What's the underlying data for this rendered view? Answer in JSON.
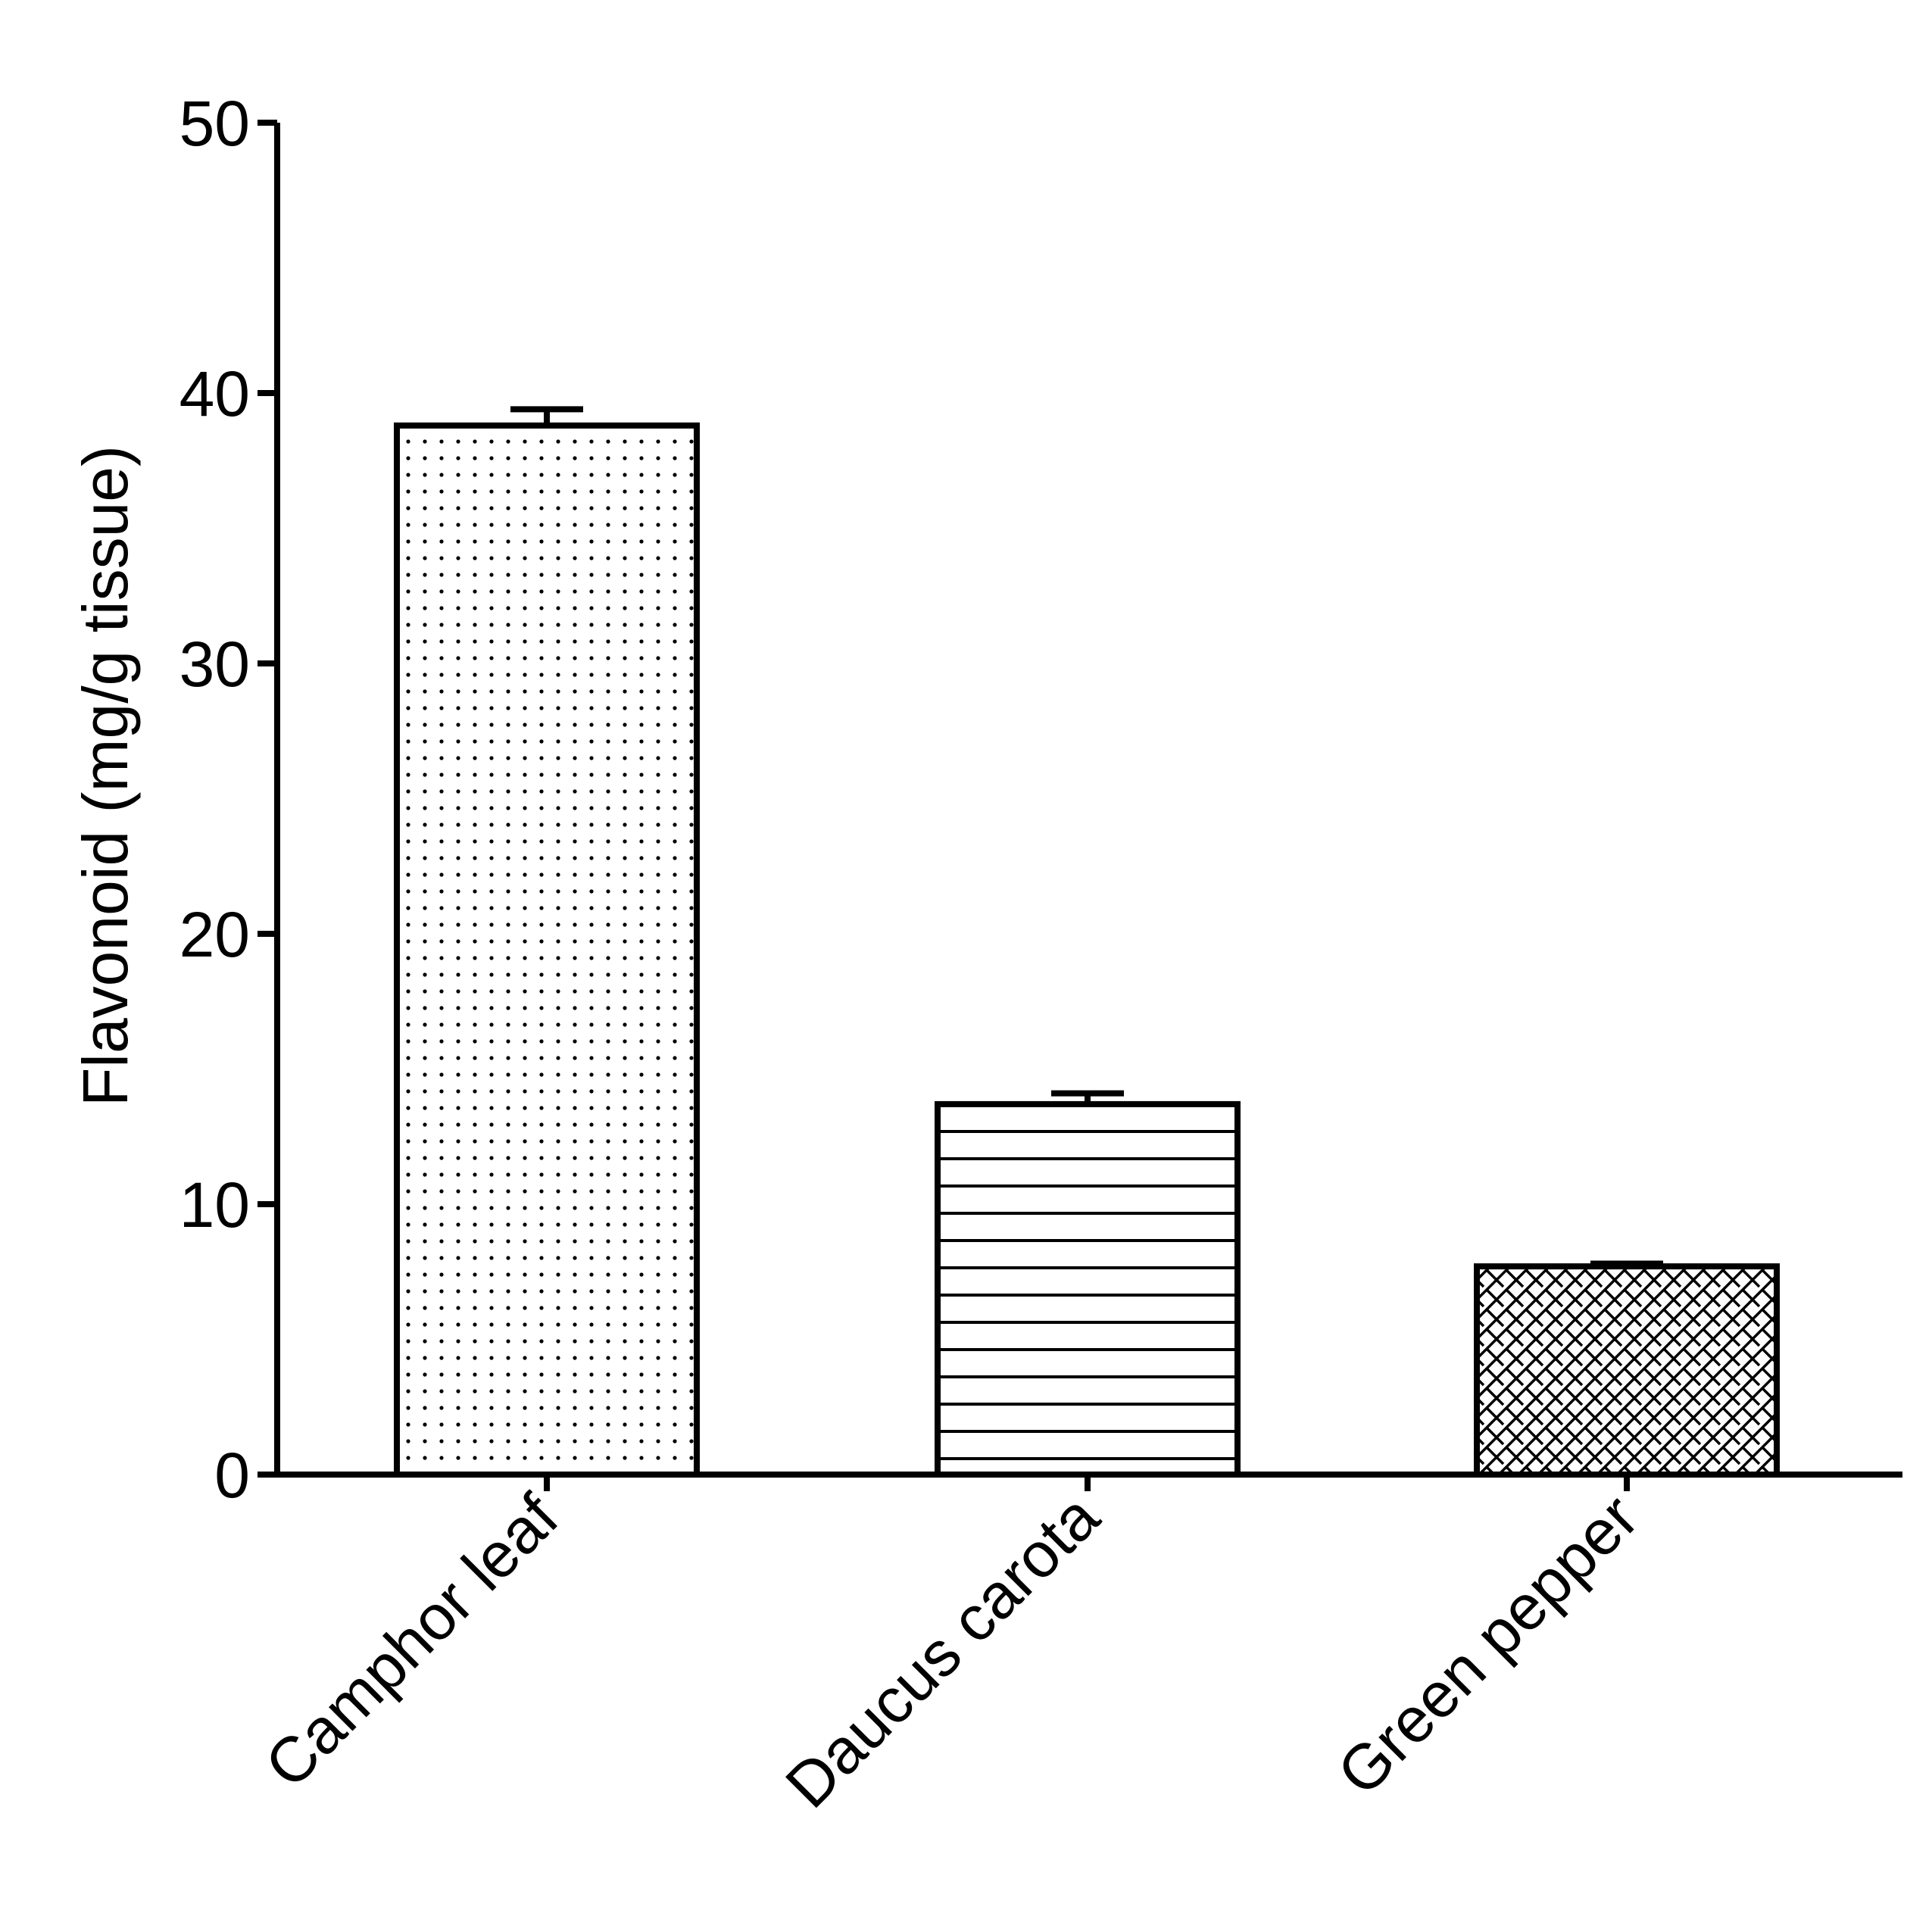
{
  "chart_data": {
    "type": "bar",
    "categories": [
      "Camphor leaf",
      "Daucus carota",
      "Green pepper"
    ],
    "values": [
      38.8,
      13.7,
      7.7
    ],
    "errors": [
      0.6,
      0.4,
      0.1
    ],
    "patterns": [
      "dots",
      "horizontal-lines",
      "crosshatch"
    ],
    "title": "",
    "xlabel": "",
    "ylabel": "Flavonoid (mg/g tissue)",
    "ylim": [
      0,
      50
    ],
    "yticks": [
      "0",
      "10",
      "20",
      "30",
      "40",
      "50"
    ],
    "grid": false,
    "legend": "none",
    "colors": {
      "stroke": "#000000",
      "fill": "#ffffff"
    }
  }
}
